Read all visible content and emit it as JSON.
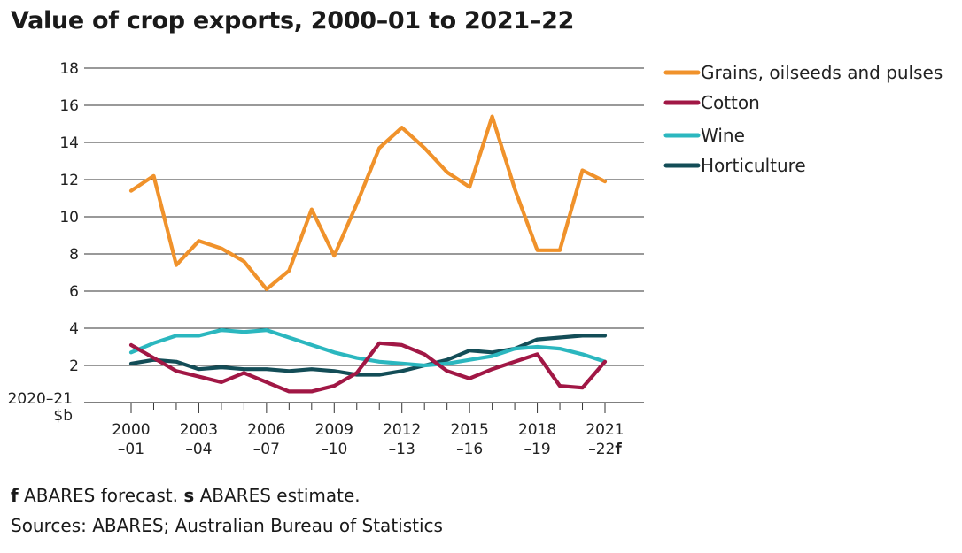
{
  "title": "Value of crop exports, 2000–01 to 2021–22",
  "notes": {
    "forecast_marker": "f",
    "forecast_text": " ABARES forecast. ",
    "estimate_marker": "s",
    "estimate_text": " ABARES estimate.",
    "sources": "Sources: ABARES; Australian Bureau of Statistics"
  },
  "chart_data": {
    "type": "line",
    "ylabel": [
      "2020–21",
      "$b"
    ],
    "ylim": [
      0,
      18
    ],
    "yticks": [
      2,
      4,
      6,
      8,
      10,
      12,
      14,
      16,
      18
    ],
    "grid": true,
    "legend_position": "top-right",
    "x": [
      "2000–01",
      "2001–02",
      "2002–03",
      "2003–04",
      "2004–05",
      "2005–06",
      "2006–07",
      "2007–08",
      "2008–09",
      "2009–10",
      "2010–11",
      "2011–12",
      "2012–13",
      "2013–14",
      "2014–15",
      "2015–16",
      "2016–17",
      "2017–18",
      "2018–19",
      "2019–20",
      "2020–21",
      "2021–22"
    ],
    "xtick_labels": [
      {
        "index": 0,
        "line1": "2000",
        "line2": "–01",
        "bold": ""
      },
      {
        "index": 3,
        "line1": "2003",
        "line2": "–04",
        "bold": ""
      },
      {
        "index": 6,
        "line1": "2006",
        "line2": "–07",
        "bold": ""
      },
      {
        "index": 9,
        "line1": "2009",
        "line2": "–10",
        "bold": ""
      },
      {
        "index": 12,
        "line1": "2012",
        "line2": "–13",
        "bold": ""
      },
      {
        "index": 15,
        "line1": "2015",
        "line2": "–16",
        "bold": ""
      },
      {
        "index": 18,
        "line1": "2018",
        "line2": "–19",
        "bold": ""
      },
      {
        "index": 21,
        "line1": "2021",
        "line2": "–22",
        "bold": "f"
      }
    ],
    "series": [
      {
        "name": "Grains, oilseeds and pulses",
        "color": "#f0922b",
        "values": [
          11.4,
          12.2,
          7.4,
          8.7,
          8.3,
          7.6,
          6.1,
          7.1,
          10.4,
          7.9,
          10.7,
          13.7,
          14.8,
          13.7,
          12.4,
          11.6,
          15.4,
          11.5,
          8.2,
          8.2,
          12.5,
          11.9
        ]
      },
      {
        "name": "Cotton",
        "color": "#a11745",
        "values": [
          3.1,
          2.4,
          1.7,
          1.4,
          1.1,
          1.6,
          1.1,
          0.6,
          0.6,
          0.9,
          1.6,
          3.2,
          3.1,
          2.6,
          1.7,
          1.3,
          1.8,
          2.2,
          2.6,
          0.9,
          0.8,
          2.2
        ]
      },
      {
        "name": "Wine",
        "color": "#2bb7bf",
        "values": [
          2.7,
          3.2,
          3.6,
          3.6,
          3.9,
          3.8,
          3.9,
          3.5,
          3.1,
          2.7,
          2.4,
          2.2,
          2.1,
          2.0,
          2.1,
          2.3,
          2.5,
          2.9,
          3.0,
          2.9,
          2.6,
          2.2
        ]
      },
      {
        "name": "Horticulture",
        "color": "#134d57",
        "values": [
          2.1,
          2.3,
          2.2,
          1.8,
          1.9,
          1.8,
          1.8,
          1.7,
          1.8,
          1.7,
          1.5,
          1.5,
          1.7,
          2.0,
          2.3,
          2.8,
          2.7,
          2.9,
          3.4,
          3.5,
          3.6,
          3.6
        ]
      }
    ]
  }
}
